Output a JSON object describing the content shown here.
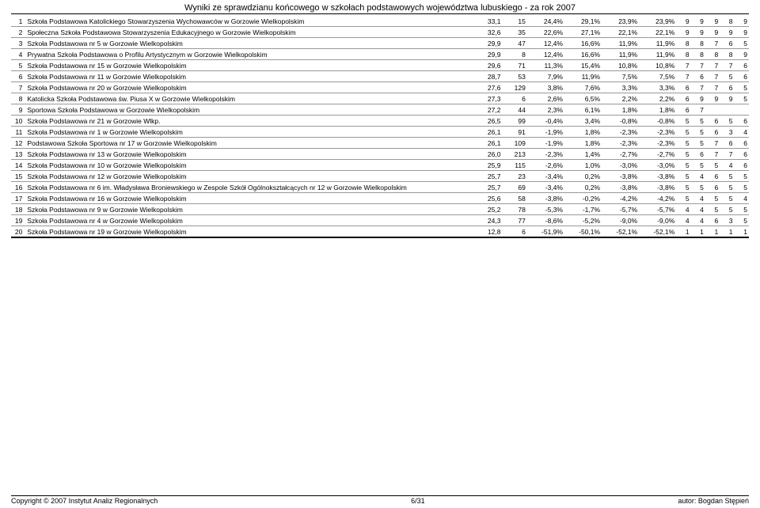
{
  "title": "Wyniki ze sprawdzianu końcowego w szkołach podstawowych województwa lubuskiego - za rok 2007",
  "footer": {
    "left": "Copyright © 2007 Instytut Analiz Regionalnych",
    "center": "6/31",
    "right": "autor: Bogdan Stępień"
  },
  "rows": [
    {
      "idx": 1,
      "name": "Szkoła Podstawowa Katolickiego Stowarzyszenia Wychowawców w Gorzowie Wielkopolskim",
      "v": "33,1",
      "n": "15",
      "p1": "24,4%",
      "p2": "29,1%",
      "p3": "23,9%",
      "p4": "23,9%",
      "s": [
        "9",
        "9",
        "9",
        "8",
        "9"
      ]
    },
    {
      "idx": 2,
      "name": "Społeczna Szkoła Podstawowa Stowarzyszenia Edukacyjnego w Gorzowie Wielkopolskim",
      "v": "32,6",
      "n": "35",
      "p1": "22,6%",
      "p2": "27,1%",
      "p3": "22,1%",
      "p4": "22,1%",
      "s": [
        "9",
        "9",
        "9",
        "9",
        "9"
      ]
    },
    {
      "idx": 3,
      "name": "Szkoła Podstawowa nr 5 w Gorzowie Wielkopolskim",
      "v": "29,9",
      "n": "47",
      "p1": "12,4%",
      "p2": "16,6%",
      "p3": "11,9%",
      "p4": "11,9%",
      "s": [
        "8",
        "8",
        "7",
        "6",
        "5"
      ]
    },
    {
      "idx": 4,
      "name": "Prywatna Szkoła Podstawowa o Profilu Artystycznym w Gorzowie Wielkopolskim",
      "v": "29,9",
      "n": "8",
      "p1": "12,4%",
      "p2": "16,6%",
      "p3": "11,9%",
      "p4": "11,9%",
      "s": [
        "8",
        "8",
        "8",
        "8",
        "9"
      ]
    },
    {
      "idx": 5,
      "name": "Szkoła Podstawowa nr 15 w Gorzowie Wielkopolskim",
      "v": "29,6",
      "n": "71",
      "p1": "11,3%",
      "p2": "15,4%",
      "p3": "10,8%",
      "p4": "10,8%",
      "s": [
        "7",
        "7",
        "7",
        "7",
        "6"
      ]
    },
    {
      "idx": 6,
      "name": "Szkoła Podstawowa nr 11 w Gorzowie Wielkopolskim",
      "v": "28,7",
      "n": "53",
      "p1": "7,9%",
      "p2": "11,9%",
      "p3": "7,5%",
      "p4": "7,5%",
      "s": [
        "7",
        "6",
        "7",
        "5",
        "6"
      ]
    },
    {
      "idx": 7,
      "name": "Szkoła Podstawowa nr 20 w Gorzowie Wielkopolskim",
      "v": "27,6",
      "n": "129",
      "p1": "3,8%",
      "p2": "7,6%",
      "p3": "3,3%",
      "p4": "3,3%",
      "s": [
        "6",
        "7",
        "7",
        "6",
        "5"
      ]
    },
    {
      "idx": 8,
      "name": "Katolicka Szkoła Podstawowa św. Piusa X w Gorzowie Wielkopolskim",
      "v": "27,3",
      "n": "6",
      "p1": "2,6%",
      "p2": "6,5%",
      "p3": "2,2%",
      "p4": "2,2%",
      "s": [
        "6",
        "9",
        "9",
        "9",
        "5"
      ]
    },
    {
      "idx": 9,
      "name": "Sportowa Szkoła Podstawowa w Gorzowie Wielkopolskim",
      "v": "27,2",
      "n": "44",
      "p1": "2,3%",
      "p2": "6,1%",
      "p3": "1,8%",
      "p4": "1,8%",
      "s": [
        "6",
        "7",
        "",
        "",
        ""
      ]
    },
    {
      "idx": 10,
      "name": "Szkoła Podstawowa nr 21 w Gorzowie Wlkp.",
      "v": "26,5",
      "n": "99",
      "p1": "-0,4%",
      "p2": "3,4%",
      "p3": "-0,8%",
      "p4": "-0,8%",
      "s": [
        "5",
        "5",
        "6",
        "5",
        "6"
      ]
    },
    {
      "idx": 11,
      "name": "Szkoła Podstawowa nr 1 w Gorzowie Wielkopolskim",
      "v": "26,1",
      "n": "91",
      "p1": "-1,9%",
      "p2": "1,8%",
      "p3": "-2,3%",
      "p4": "-2,3%",
      "s": [
        "5",
        "5",
        "6",
        "3",
        "4"
      ]
    },
    {
      "idx": 12,
      "name": "Podstawowa Szkoła Sportowa nr 17 w Gorzowie Wielkopolskim",
      "v": "26,1",
      "n": "109",
      "p1": "-1,9%",
      "p2": "1,8%",
      "p3": "-2,3%",
      "p4": "-2,3%",
      "s": [
        "5",
        "5",
        "7",
        "6",
        "6"
      ]
    },
    {
      "idx": 13,
      "name": "Szkoła Podstawowa nr 13 w Gorzowie Wielkopolskim",
      "v": "26,0",
      "n": "213",
      "p1": "-2,3%",
      "p2": "1,4%",
      "p3": "-2,7%",
      "p4": "-2,7%",
      "s": [
        "5",
        "6",
        "7",
        "7",
        "6"
      ]
    },
    {
      "idx": 14,
      "name": "Szkoła Podstawowa nr 10 w Gorzowie Wielkopolskim",
      "v": "25,9",
      "n": "115",
      "p1": "-2,6%",
      "p2": "1,0%",
      "p3": "-3,0%",
      "p4": "-3,0%",
      "s": [
        "5",
        "5",
        "5",
        "4",
        "6"
      ]
    },
    {
      "idx": 15,
      "name": "Szkoła Podstawowa nr 12 w Gorzowie Wielkopolskim",
      "v": "25,7",
      "n": "23",
      "p1": "-3,4%",
      "p2": "0,2%",
      "p3": "-3,8%",
      "p4": "-3,8%",
      "s": [
        "5",
        "4",
        "6",
        "5",
        "5"
      ]
    },
    {
      "idx": 16,
      "name": "Szkoła Podstawowa nr 6 im. Władysława Broniewskiego w Zespole Szkół Ogólnokształcących nr 12 w Gorzowie Wielkopolskim",
      "v": "25,7",
      "n": "69",
      "p1": "-3,4%",
      "p2": "0,2%",
      "p3": "-3,8%",
      "p4": "-3,8%",
      "s": [
        "5",
        "5",
        "6",
        "5",
        "5"
      ]
    },
    {
      "idx": 17,
      "name": "Szkoła Podstawowa nr 16 w Gorzowie Wielkopolskim",
      "v": "25,6",
      "n": "58",
      "p1": "-3,8%",
      "p2": "-0,2%",
      "p3": "-4,2%",
      "p4": "-4,2%",
      "s": [
        "5",
        "4",
        "5",
        "5",
        "4"
      ]
    },
    {
      "idx": 18,
      "name": "Szkoła Podstawowa nr 9 w Gorzowie Wielkopolskim",
      "v": "25,2",
      "n": "78",
      "p1": "-5,3%",
      "p2": "-1,7%",
      "p3": "-5,7%",
      "p4": "-5,7%",
      "s": [
        "4",
        "4",
        "5",
        "5",
        "5"
      ]
    },
    {
      "idx": 19,
      "name": "Szkoła Podstawowa nr 4 w Gorzowie Wielkopolskim",
      "v": "24,3",
      "n": "77",
      "p1": "-8,6%",
      "p2": "-5,2%",
      "p3": "-9,0%",
      "p4": "-9,0%",
      "s": [
        "4",
        "4",
        "6",
        "3",
        "5"
      ]
    },
    {
      "idx": 20,
      "name": "Szkoła Podstawowa nr 19 w Gorzowie Wielkopolskim",
      "v": "12,8",
      "n": "6",
      "p1": "-51,9%",
      "p2": "-50,1%",
      "p3": "-52,1%",
      "p4": "-52,1%",
      "s": [
        "1",
        "1",
        "1",
        "1",
        "1"
      ]
    }
  ]
}
